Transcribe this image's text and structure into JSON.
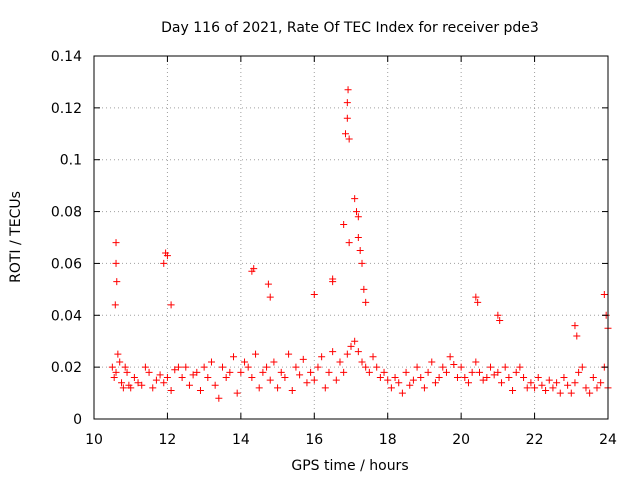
{
  "chart_data": {
    "type": "scatter",
    "title": "Day 116 of 2021, Rate Of TEC Index for receiver pde3",
    "xlabel": "GPS time / hours",
    "ylabel": "ROTI / TECUs",
    "xlim": [
      10,
      24
    ],
    "ylim": [
      0,
      0.14
    ],
    "xticks": [
      10,
      12,
      14,
      16,
      18,
      20,
      22,
      24
    ],
    "xtick_labels": [
      "10",
      "12",
      "14",
      "16",
      "18",
      "20",
      "22",
      "24"
    ],
    "yticks": [
      0,
      0.02,
      0.04,
      0.06,
      0.08,
      0.1,
      0.12,
      0.14
    ],
    "ytick_labels": [
      "0",
      "0.02",
      "0.04",
      "0.06",
      "0.08",
      "0.1",
      "0.12",
      "0.14"
    ],
    "grid": true,
    "marker": "+",
    "color": "#ff0000",
    "series": [
      {
        "name": "ROTI pde3",
        "x": [
          10.5,
          10.55,
          10.6,
          10.65,
          10.7,
          10.75,
          10.8,
          10.85,
          10.9,
          10.95,
          11.0,
          11.1,
          11.2,
          11.3,
          11.4,
          11.5,
          11.6,
          11.7,
          11.8,
          11.9,
          12.0,
          12.1,
          12.2,
          12.3,
          12.4,
          12.5,
          12.6,
          12.7,
          12.8,
          12.9,
          13.0,
          13.1,
          13.2,
          13.3,
          13.4,
          13.5,
          13.6,
          13.7,
          13.8,
          13.9,
          14.0,
          14.1,
          14.2,
          14.3,
          14.4,
          14.5,
          14.6,
          14.7,
          14.8,
          14.9,
          15.0,
          15.1,
          15.2,
          15.3,
          15.4,
          15.5,
          15.6,
          15.7,
          15.8,
          15.9,
          16.0,
          16.1,
          16.2,
          16.3,
          16.4,
          16.5,
          16.6,
          16.7,
          16.8,
          16.9,
          17.0,
          17.1,
          17.2,
          17.3,
          17.4,
          17.5,
          17.6,
          17.7,
          17.8,
          17.9,
          18.0,
          18.1,
          18.2,
          18.3,
          18.4,
          18.5,
          18.6,
          18.7,
          18.8,
          18.9,
          19.0,
          19.1,
          19.2,
          19.3,
          19.4,
          19.5,
          19.6,
          19.7,
          19.8,
          19.9,
          20.0,
          20.1,
          20.2,
          20.3,
          20.4,
          20.5,
          20.6,
          20.7,
          20.8,
          20.9,
          21.0,
          21.1,
          21.2,
          21.3,
          21.4,
          21.5,
          21.6,
          21.7,
          21.8,
          21.9,
          22.0,
          22.1,
          22.2,
          22.3,
          22.4,
          22.5,
          22.6,
          22.7,
          22.8,
          22.9,
          23.0,
          23.1,
          23.2,
          23.3,
          23.4,
          23.5,
          23.6,
          23.7,
          23.8,
          23.9,
          24.0,
          10.6,
          10.6,
          10.62,
          10.58,
          11.9,
          11.95,
          12.0,
          12.1,
          14.3,
          14.35,
          14.75,
          14.8,
          16.0,
          16.5,
          16.5,
          16.8,
          16.85,
          16.9,
          16.9,
          16.92,
          16.95,
          16.95,
          17.1,
          17.15,
          17.2,
          17.2,
          17.25,
          17.3,
          17.35,
          17.4,
          20.4,
          20.45,
          21.0,
          21.05,
          23.1,
          23.15,
          23.9,
          23.95,
          24.0
        ],
        "y": [
          0.02,
          0.016,
          0.018,
          0.025,
          0.022,
          0.014,
          0.012,
          0.02,
          0.018,
          0.013,
          0.012,
          0.016,
          0.014,
          0.013,
          0.02,
          0.018,
          0.012,
          0.015,
          0.017,
          0.014,
          0.016,
          0.011,
          0.019,
          0.02,
          0.016,
          0.02,
          0.013,
          0.017,
          0.018,
          0.011,
          0.02,
          0.016,
          0.022,
          0.013,
          0.008,
          0.02,
          0.016,
          0.018,
          0.024,
          0.01,
          0.018,
          0.022,
          0.02,
          0.016,
          0.025,
          0.012,
          0.018,
          0.02,
          0.015,
          0.022,
          0.012,
          0.018,
          0.016,
          0.025,
          0.011,
          0.02,
          0.017,
          0.023,
          0.014,
          0.018,
          0.015,
          0.02,
          0.024,
          0.012,
          0.018,
          0.026,
          0.015,
          0.022,
          0.018,
          0.025,
          0.028,
          0.03,
          0.026,
          0.022,
          0.02,
          0.018,
          0.024,
          0.02,
          0.016,
          0.018,
          0.015,
          0.012,
          0.016,
          0.014,
          0.01,
          0.018,
          0.013,
          0.015,
          0.02,
          0.016,
          0.012,
          0.018,
          0.022,
          0.014,
          0.016,
          0.02,
          0.018,
          0.024,
          0.021,
          0.016,
          0.02,
          0.016,
          0.014,
          0.018,
          0.022,
          0.018,
          0.015,
          0.016,
          0.02,
          0.017,
          0.018,
          0.014,
          0.02,
          0.016,
          0.011,
          0.018,
          0.02,
          0.016,
          0.012,
          0.014,
          0.012,
          0.016,
          0.013,
          0.011,
          0.015,
          0.012,
          0.014,
          0.01,
          0.016,
          0.013,
          0.01,
          0.014,
          0.018,
          0.02,
          0.012,
          0.01,
          0.016,
          0.012,
          0.014,
          0.02,
          0.012,
          0.068,
          0.06,
          0.053,
          0.044,
          0.06,
          0.064,
          0.063,
          0.044,
          0.057,
          0.058,
          0.052,
          0.047,
          0.048,
          0.054,
          0.053,
          0.075,
          0.11,
          0.116,
          0.122,
          0.127,
          0.108,
          0.068,
          0.085,
          0.08,
          0.078,
          0.07,
          0.065,
          0.06,
          0.05,
          0.045,
          0.047,
          0.045,
          0.04,
          0.038,
          0.036,
          0.032,
          0.048,
          0.04,
          0.035
        ]
      }
    ]
  }
}
